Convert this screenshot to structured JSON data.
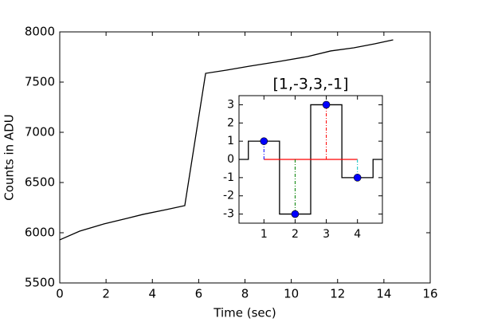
{
  "chart_data": [
    {
      "type": "line",
      "xlabel": "Time (sec)",
      "ylabel": "Counts in ADU",
      "xlim": [
        0,
        16
      ],
      "ylim": [
        5500,
        8000
      ],
      "xticks": [
        0,
        2,
        4,
        6,
        8,
        10,
        12,
        14,
        16
      ],
      "yticks": [
        5500,
        6000,
        6500,
        7000,
        7500,
        8000
      ],
      "series": [
        {
          "color": "#000000",
          "x": [
            0,
            0.86,
            1.9,
            2.9,
            3.6,
            4.6,
            5.4,
            6.3,
            7.2,
            8.2,
            9.5,
            10.7,
            11.7,
            12.7,
            13.6,
            14.4
          ],
          "values": [
            5929,
            6016,
            6087,
            6143,
            6183,
            6230,
            6270,
            7587,
            7619,
            7659,
            7706,
            7754,
            7810,
            7841,
            7881,
            7921
          ]
        }
      ]
    },
    {
      "type": "stem",
      "title": "[1,-3,3,-1]",
      "xlim": [
        0.2,
        4.8
      ],
      "ylim": [
        -3.5,
        3.5
      ],
      "xticks": [
        1,
        2,
        3,
        4
      ],
      "yticks": [
        -3,
        -2,
        -1,
        0,
        1,
        2,
        3
      ],
      "series": [
        {
          "type": "line",
          "color": "#000000",
          "x": [
            0.2,
            0.5,
            0.5,
            1.5,
            1.5,
            2.5,
            2.5,
            3.5,
            3.5,
            4.5,
            4.5,
            4.8
          ],
          "values": [
            0,
            0,
            1,
            1,
            -3,
            -3,
            3,
            3,
            -1,
            -1,
            0,
            0
          ]
        },
        {
          "type": "stem",
          "color": "#0000ff",
          "stem_colors": [
            "#0000ff",
            "#008000",
            "#ff0000",
            "#00bfbf"
          ],
          "baseline_color": "#ff0000",
          "x": [
            1,
            2,
            3,
            4
          ],
          "values": [
            1,
            -3,
            3,
            -1
          ]
        }
      ]
    }
  ]
}
